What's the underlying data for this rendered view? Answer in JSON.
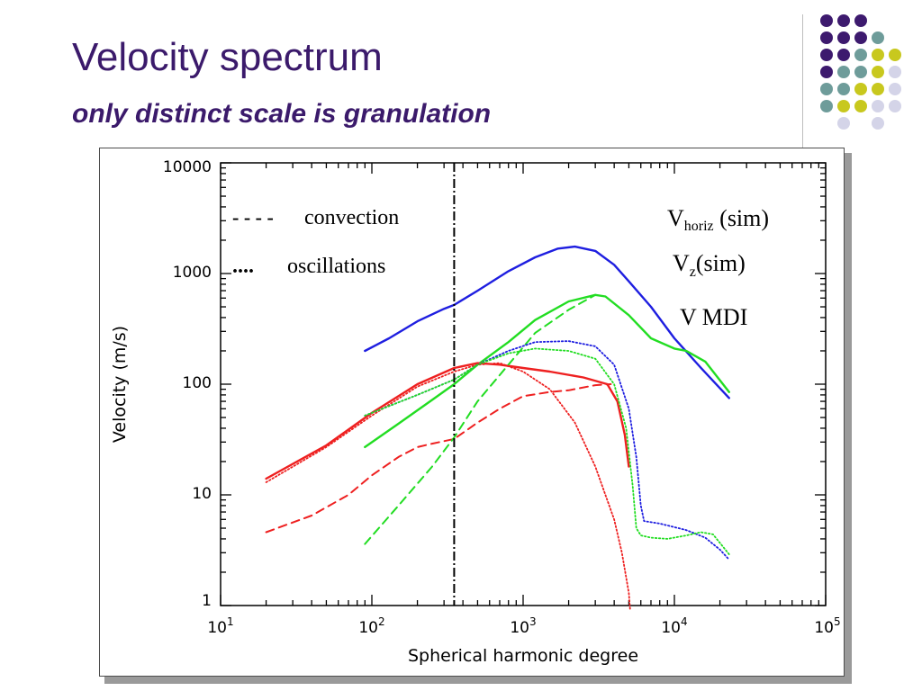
{
  "slide": {
    "title": "Velocity spectrum",
    "subtitle": "only distinct scale is granulation"
  },
  "colors": {
    "title": "#3b1a6b",
    "dot_purple": "#3d1a6e",
    "dot_teal": "#6e9c9a",
    "dot_yellow": "#c8c81e",
    "dot_lavender": "#d4d4e8",
    "blue": "#1e1ee0",
    "green": "#22dd22",
    "red": "#ee2020",
    "teal_label": "#5a9a98",
    "green_label": "#16c016",
    "red_label": "#ee1010"
  },
  "chart_data": {
    "type": "line",
    "xscale": "log",
    "yscale": "log",
    "xlim": [
      10,
      100000
    ],
    "ylim": [
      1,
      10000
    ],
    "xlabel": "Spherical harmonic degree",
    "ylabel": "Velocity (m/s)",
    "x_tick_labels": [
      {
        "base": "10",
        "exp": "1",
        "value": 10
      },
      {
        "base": "10",
        "exp": "2",
        "value": 100
      },
      {
        "base": "10",
        "exp": "3",
        "value": 1000
      },
      {
        "base": "10",
        "exp": "4",
        "value": 10000
      },
      {
        "base": "10",
        "exp": "5",
        "value": 100000
      }
    ],
    "y_tick_labels": [
      {
        "label": "10000",
        "value": 10000
      },
      {
        "label": "1000",
        "value": 1000
      },
      {
        "label": "100",
        "value": 100
      },
      {
        "label": "10",
        "value": 10
      },
      {
        "label": "1",
        "value": 1
      }
    ],
    "vertical_line_x": 350,
    "annotations": {
      "convection": "convection",
      "convection_symbol": "- - - -",
      "oscillations": "oscillations",
      "oscillations_symbol": "....",
      "vhoriz_main": "V",
      "vhoriz_sub": "horiz",
      "vhoriz_rest": " (sim)",
      "vz_main": "V",
      "vz_sub": "z",
      "vz_rest": "(sim)",
      "vmdi": "V MDI"
    },
    "series": [
      {
        "color": "blue",
        "style": "solid",
        "points": [
          [
            90,
            200
          ],
          [
            130,
            260
          ],
          [
            200,
            370
          ],
          [
            300,
            480
          ],
          [
            350,
            520
          ],
          [
            500,
            700
          ],
          [
            800,
            1050
          ],
          [
            1200,
            1400
          ],
          [
            1700,
            1680
          ],
          [
            2200,
            1750
          ],
          [
            3000,
            1600
          ],
          [
            4000,
            1200
          ],
          [
            5000,
            850
          ],
          [
            7000,
            500
          ],
          [
            10000,
            260
          ],
          [
            15000,
            140
          ],
          [
            23000,
            75
          ]
        ]
      },
      {
        "color": "green",
        "style": "solid",
        "points": [
          [
            90,
            27
          ],
          [
            150,
            44
          ],
          [
            250,
            72
          ],
          [
            350,
            100
          ],
          [
            500,
            150
          ],
          [
            800,
            240
          ],
          [
            1200,
            380
          ],
          [
            2000,
            560
          ],
          [
            3000,
            640
          ],
          [
            3500,
            620
          ],
          [
            5000,
            420
          ],
          [
            7000,
            260
          ],
          [
            10000,
            210
          ],
          [
            12000,
            200
          ],
          [
            16000,
            160
          ],
          [
            23000,
            85
          ]
        ]
      },
      {
        "color": "red",
        "style": "solid",
        "points": [
          [
            20,
            14
          ],
          [
            50,
            28
          ],
          [
            100,
            55
          ],
          [
            200,
            100
          ],
          [
            350,
            140
          ],
          [
            500,
            155
          ],
          [
            700,
            150
          ],
          [
            1000,
            140
          ],
          [
            1500,
            130
          ],
          [
            2500,
            115
          ],
          [
            3600,
            100
          ],
          [
            4200,
            70
          ],
          [
            4700,
            35
          ],
          [
            5000,
            18
          ]
        ]
      },
      {
        "color": "red",
        "style": "dashed",
        "points": [
          [
            20,
            4.6
          ],
          [
            40,
            6.5
          ],
          [
            70,
            10
          ],
          [
            100,
            15
          ],
          [
            150,
            22
          ],
          [
            200,
            27
          ],
          [
            250,
            29
          ],
          [
            350,
            32
          ],
          [
            500,
            45
          ],
          [
            700,
            60
          ],
          [
            1000,
            78
          ],
          [
            1500,
            85
          ],
          [
            2000,
            88
          ],
          [
            3000,
            98
          ],
          [
            3800,
            100
          ]
        ]
      },
      {
        "color": "green",
        "style": "dashed",
        "points": [
          [
            90,
            3.6
          ],
          [
            150,
            8
          ],
          [
            250,
            18
          ],
          [
            350,
            33
          ],
          [
            500,
            70
          ],
          [
            800,
            150
          ],
          [
            1200,
            290
          ],
          [
            2000,
            470
          ],
          [
            3000,
            640
          ]
        ]
      },
      {
        "color": "red",
        "style": "dotted",
        "points": [
          [
            20,
            13
          ],
          [
            50,
            27
          ],
          [
            100,
            52
          ],
          [
            200,
            95
          ],
          [
            350,
            130
          ],
          [
            500,
            150
          ],
          [
            700,
            155
          ],
          [
            1000,
            130
          ],
          [
            1500,
            90
          ],
          [
            2200,
            45
          ],
          [
            3000,
            18
          ],
          [
            4000,
            6
          ],
          [
            4500,
            3
          ],
          [
            5000,
            1.3
          ],
          [
            5100,
            0.9
          ]
        ]
      },
      {
        "color": "blue",
        "style": "dotted",
        "points": [
          [
            90,
            52
          ],
          [
            200,
            80
          ],
          [
            350,
            110
          ],
          [
            500,
            150
          ],
          [
            800,
            200
          ],
          [
            1200,
            240
          ],
          [
            2000,
            245
          ],
          [
            3000,
            220
          ],
          [
            4000,
            150
          ],
          [
            5000,
            60
          ],
          [
            5600,
            22
          ],
          [
            6000,
            8
          ],
          [
            6300,
            5.8
          ],
          [
            8000,
            5.5
          ],
          [
            12000,
            4.8
          ],
          [
            16000,
            4.1
          ],
          [
            20000,
            3.2
          ],
          [
            23000,
            2.6
          ]
        ]
      },
      {
        "color": "green",
        "style": "dotted",
        "points": [
          [
            90,
            52
          ],
          [
            200,
            80
          ],
          [
            350,
            110
          ],
          [
            500,
            150
          ],
          [
            800,
            190
          ],
          [
            1200,
            210
          ],
          [
            2000,
            200
          ],
          [
            3000,
            170
          ],
          [
            4000,
            100
          ],
          [
            4800,
            40
          ],
          [
            5300,
            12
          ],
          [
            5600,
            5
          ],
          [
            6000,
            4.3
          ],
          [
            7000,
            4.1
          ],
          [
            9000,
            4.0
          ],
          [
            12000,
            4.3
          ],
          [
            15000,
            4.6
          ],
          [
            18000,
            4.4
          ],
          [
            23000,
            2.9
          ]
        ]
      }
    ]
  }
}
